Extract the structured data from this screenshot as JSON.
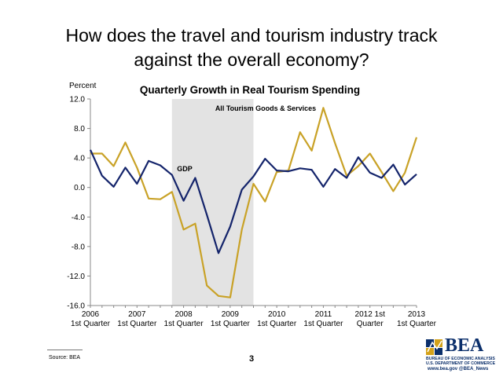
{
  "slide": {
    "title_line1": "How does the travel and tourism industry track",
    "title_line2": "against the overall economy?",
    "source": "Source: BEA",
    "page_number": "3"
  },
  "logo": {
    "word": "BEA",
    "line1": "BUREAU OF ECONOMIC ANALYSIS",
    "line2": "U.S. DEPARTMENT OF COMMERCE",
    "line3": "www.bea.gov   @BEA_News",
    "colors": {
      "navy": "#0b2f6b",
      "gold": "#d4a21a"
    }
  },
  "chart_data": {
    "type": "line",
    "title": "Quarterly Growth in Real Tourism Spending",
    "ylabel": "Percent",
    "xlabel": "",
    "ylim": [
      -16.0,
      12.0
    ],
    "yticks": [
      "-16.0",
      "-12.0",
      "-8.0",
      "-4.0",
      "0.0",
      "4.0",
      "8.0",
      "12.0"
    ],
    "ytick_values": [
      -16,
      -12,
      -8,
      -4,
      0,
      4,
      8,
      12
    ],
    "xtick_labels": [
      {
        "q": 0,
        "line1": "2006",
        "line2": "1st Quarter"
      },
      {
        "q": 4,
        "line1": "2007",
        "line2": "1st Quarter"
      },
      {
        "q": 8,
        "line1": "2008",
        "line2": "1st Quarter"
      },
      {
        "q": 12,
        "line1": "2009",
        "line2": "1st Quarter"
      },
      {
        "q": 16,
        "line1": "2010",
        "line2": "1st Quarter"
      },
      {
        "q": 20,
        "line1": "2011",
        "line2": "1st Quarter"
      },
      {
        "q": 24,
        "line1": "2012 1st",
        "line2": "Quarter"
      },
      {
        "q": 28,
        "line1": "2013",
        "line2": "1st Quarter"
      }
    ],
    "recession_shading": {
      "start_q": 7,
      "end_q": 14,
      "color": "#e3e3e3"
    },
    "grid": false,
    "legend": "none",
    "annotations": [
      {
        "text": "All Tourism Goods & Services",
        "series": 0
      },
      {
        "text": "GDP",
        "series": 1
      }
    ],
    "series": [
      {
        "color": "#c9a227",
        "values": [
          4.6,
          4.6,
          2.9,
          6.1,
          2.7,
          -1.5,
          -1.6,
          -0.6,
          -5.7,
          -4.9,
          -13.3,
          -14.7,
          -14.9,
          -5.7,
          0.5,
          -1.9,
          2.1,
          2.3,
          7.5,
          5.0,
          10.8,
          6.0,
          1.6,
          2.9,
          4.6,
          2.1,
          -0.5,
          2.0,
          6.8
        ]
      },
      {
        "color": "#14246b",
        "values": [
          5.1,
          1.6,
          0.1,
          2.7,
          0.5,
          3.6,
          3.0,
          1.7,
          -1.8,
          1.3,
          -3.7,
          -8.9,
          -5.3,
          -0.3,
          1.5,
          3.9,
          2.3,
          2.2,
          2.6,
          2.4,
          0.1,
          2.5,
          1.3,
          4.1,
          2.0,
          1.3,
          3.1,
          0.4,
          1.8
        ]
      }
    ]
  }
}
